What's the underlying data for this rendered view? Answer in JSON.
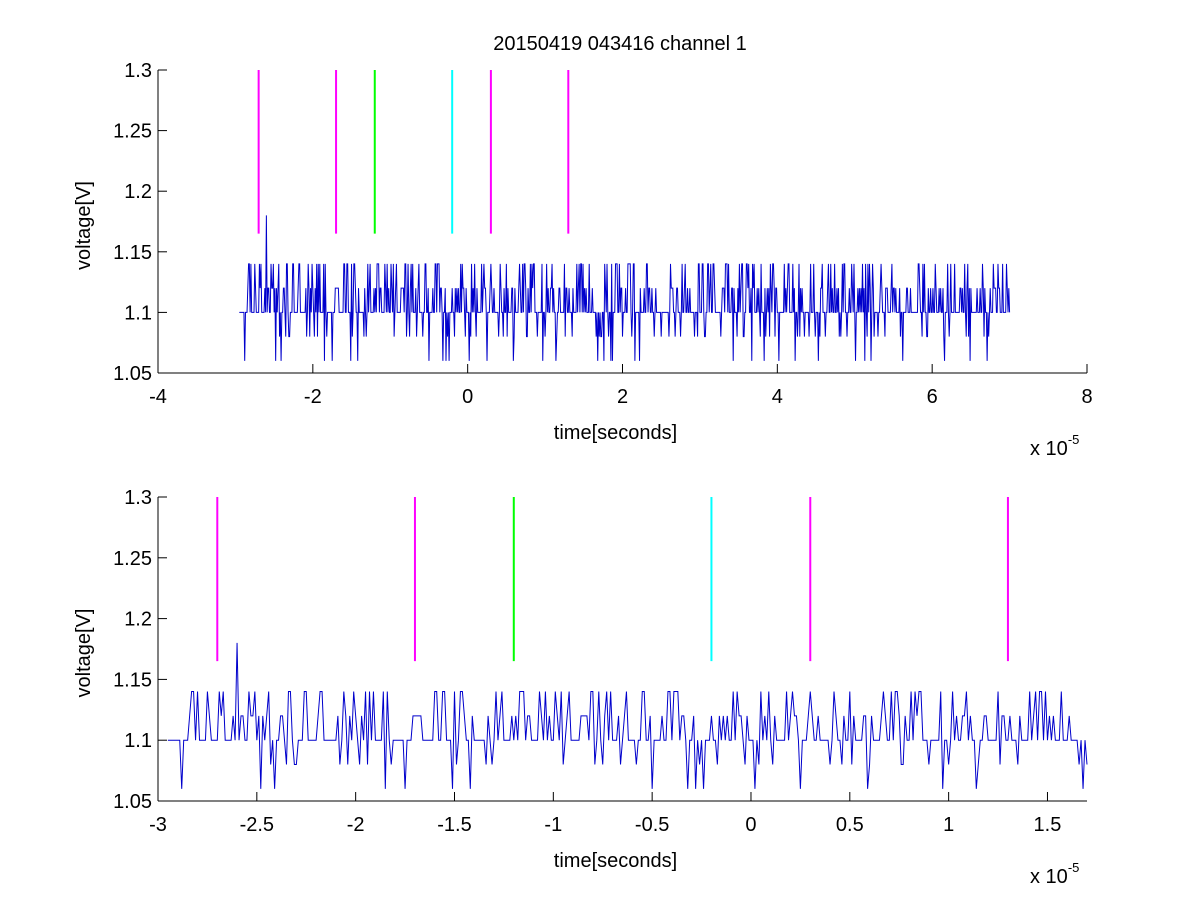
{
  "title": "20150419 043416 channel 1",
  "chart_data": [
    {
      "type": "line",
      "title": "20150419 043416 channel 1",
      "xlabel": "time[seconds]",
      "ylabel": "voltage[V]",
      "x_exponent_label": "x 10",
      "x_exponent": "-5",
      "xlim": [
        -4e-05,
        8e-05
      ],
      "ylim": [
        1.05,
        1.3
      ],
      "xticks": [
        -4e-05,
        -2e-05,
        0,
        2e-05,
        4e-05,
        6e-05,
        8e-05
      ],
      "xtick_labels": [
        "-4",
        "-2",
        "0",
        "2",
        "4",
        "6",
        "8"
      ],
      "yticks": [
        1.05,
        1.1,
        1.15,
        1.2,
        1.25,
        1.3
      ],
      "ytick_labels": [
        "1.05",
        "1.1",
        "1.15",
        "1.2",
        "1.25",
        "1.3"
      ],
      "grid": false,
      "signal": {
        "color": "#0000cc",
        "x_start": -2.95e-05,
        "x_end": 7e-05,
        "baseline": 1.1,
        "levels": [
          1.06,
          1.08,
          1.1,
          1.12,
          1.14
        ],
        "peak": {
          "x": -2.6e-05,
          "y": 1.18
        }
      },
      "markers": [
        {
          "x": -2.7e-05,
          "color": "#ff00ff",
          "y_from": 1.165,
          "y_to": 1.3
        },
        {
          "x": -1.7e-05,
          "color": "#ff00ff",
          "y_from": 1.165,
          "y_to": 1.3
        },
        {
          "x": -1.2e-05,
          "color": "#00ff00",
          "y_from": 1.165,
          "y_to": 1.3
        },
        {
          "x": -2e-06,
          "color": "#00ffff",
          "y_from": 1.165,
          "y_to": 1.3
        },
        {
          "x": 3e-06,
          "color": "#ff00ff",
          "y_from": 1.165,
          "y_to": 1.3
        },
        {
          "x": 1.3e-05,
          "color": "#ff00ff",
          "y_from": 1.165,
          "y_to": 1.3
        }
      ]
    },
    {
      "type": "line",
      "title": "",
      "xlabel": "time[seconds]",
      "ylabel": "voltage[V]",
      "x_exponent_label": "x 10",
      "x_exponent": "-5",
      "xlim": [
        -3e-05,
        1.7e-05
      ],
      "ylim": [
        1.05,
        1.3
      ],
      "xticks": [
        -3e-05,
        -2.5e-05,
        -2e-05,
        -1.5e-05,
        -1e-05,
        -5e-06,
        0,
        5e-06,
        1e-05,
        1.5e-05
      ],
      "xtick_labels": [
        "-3",
        "-2.5",
        "-2",
        "-1.5",
        "-1",
        "-0.5",
        "0",
        "0.5",
        "1",
        "1.5"
      ],
      "yticks": [
        1.05,
        1.1,
        1.15,
        1.2,
        1.25,
        1.3
      ],
      "ytick_labels": [
        "1.05",
        "1.1",
        "1.15",
        "1.2",
        "1.25",
        "1.3"
      ],
      "grid": false,
      "signal": {
        "color": "#0000cc",
        "x_start": -2.95e-05,
        "x_end": 1.7e-05,
        "baseline": 1.1,
        "levels": [
          1.06,
          1.08,
          1.1,
          1.12,
          1.14
        ],
        "peak": {
          "x": -2.6e-05,
          "y": 1.18
        }
      },
      "markers": [
        {
          "x": -2.7e-05,
          "color": "#ff00ff",
          "y_from": 1.165,
          "y_to": 1.3
        },
        {
          "x": -1.7e-05,
          "color": "#ff00ff",
          "y_from": 1.165,
          "y_to": 1.3
        },
        {
          "x": -1.2e-05,
          "color": "#00ff00",
          "y_from": 1.165,
          "y_to": 1.3
        },
        {
          "x": -2e-06,
          "color": "#00ffff",
          "y_from": 1.165,
          "y_to": 1.3
        },
        {
          "x": 3e-06,
          "color": "#ff00ff",
          "y_from": 1.165,
          "y_to": 1.3
        },
        {
          "x": 1.3e-05,
          "color": "#ff00ff",
          "y_from": 1.165,
          "y_to": 1.3
        }
      ]
    }
  ]
}
